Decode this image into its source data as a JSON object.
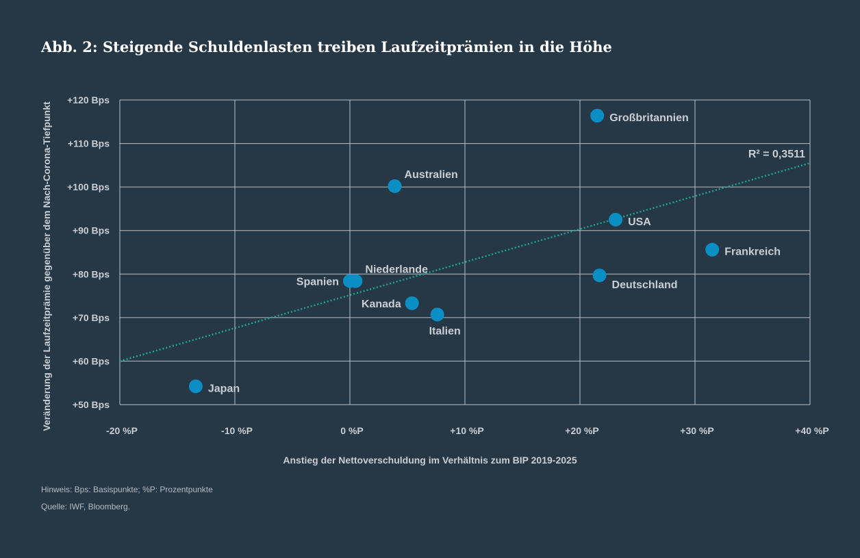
{
  "title": "Abb. 2: Steigende Schuldenlasten treiben Laufzeitprämien in die Höhe",
  "notes": {
    "hint": "Hinweis: Bps: Basispunkte; %P: Prozentpunkte",
    "source": "Quelle: IWF, Bloomberg."
  },
  "colors": {
    "background": "#263746",
    "point": "#0a8ec4",
    "trendline": "#1aaa92",
    "grid": "#b9c0c6",
    "text": "#c9ced3"
  },
  "chart_data": {
    "type": "scatter",
    "xlabel": "Anstieg der Nettoverschuldung im Verhältnis zum BIP 2019-2025",
    "ylabel": "Veränderung der Laufzeitprämie gegenüber dem Nach-Corona-Tiefpunkt",
    "xlim": [
      -20,
      40
    ],
    "ylim": [
      50,
      120
    ],
    "x_ticks": [
      -20,
      -10,
      0,
      10,
      20,
      30,
      40
    ],
    "y_ticks": [
      50,
      60,
      70,
      80,
      90,
      100,
      110,
      120
    ],
    "x_tick_labels": [
      "-20 %P",
      "-10 %P",
      "0 %P",
      "+10 %P",
      "+20 %P",
      "+30 %P",
      "+40 %P"
    ],
    "y_tick_labels": [
      "+50 Bps",
      "+60 Bps",
      "+70 Bps",
      "+80 Bps",
      "+90 Bps",
      "+100 Bps",
      "+110 Bps",
      "+120 Bps"
    ],
    "grid": true,
    "points": [
      {
        "name": "Großbritannien",
        "x": 21.5,
        "y": 116.4,
        "label_side": "right"
      },
      {
        "name": "Australien",
        "x": 3.9,
        "y": 100.2,
        "label_side": "upper-right"
      },
      {
        "name": "USA",
        "x": 23.1,
        "y": 92.5,
        "label_side": "right"
      },
      {
        "name": "Frankreich",
        "x": 31.5,
        "y": 85.6,
        "label_side": "right"
      },
      {
        "name": "Deutschland",
        "x": 21.7,
        "y": 79.7,
        "label_side": "lower-right"
      },
      {
        "name": "Niederlande",
        "x": 0.5,
        "y": 78.4,
        "label_side": "upper-right"
      },
      {
        "name": "Spanien",
        "x": 0.0,
        "y": 78.4,
        "label_side": "left"
      },
      {
        "name": "Kanada",
        "x": 5.4,
        "y": 73.3,
        "label_side": "left"
      },
      {
        "name": "Italien",
        "x": 7.6,
        "y": 70.7,
        "label_side": "below"
      },
      {
        "name": "Japan",
        "x": -13.4,
        "y": 54.2,
        "label_side": "right"
      }
    ],
    "trendline": {
      "x": [
        -20,
        40
      ],
      "y": [
        60.0,
        105.5
      ],
      "r2_label": "R² = 0,3511"
    }
  }
}
